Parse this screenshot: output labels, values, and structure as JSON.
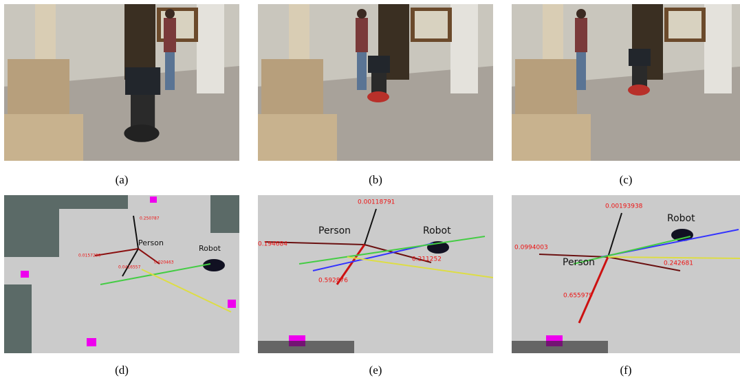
{
  "panels": [
    {
      "caption": "(a)"
    },
    {
      "caption": "(b)"
    },
    {
      "caption": "(c)"
    },
    {
      "caption": "(d)",
      "labels": [
        "0.250787",
        "Person",
        "Robot",
        "0.0157200",
        "0.020463",
        "0.0416557"
      ]
    },
    {
      "caption": "(e)",
      "labels": [
        "0.00118791",
        "Person",
        "Robot",
        "0.194684",
        "0.211252",
        "0.592876"
      ]
    },
    {
      "caption": "(f)",
      "labels": [
        "0.00193938",
        "Robot",
        "0.0994003",
        "Person",
        "0.242681",
        "0.655979"
      ]
    }
  ]
}
